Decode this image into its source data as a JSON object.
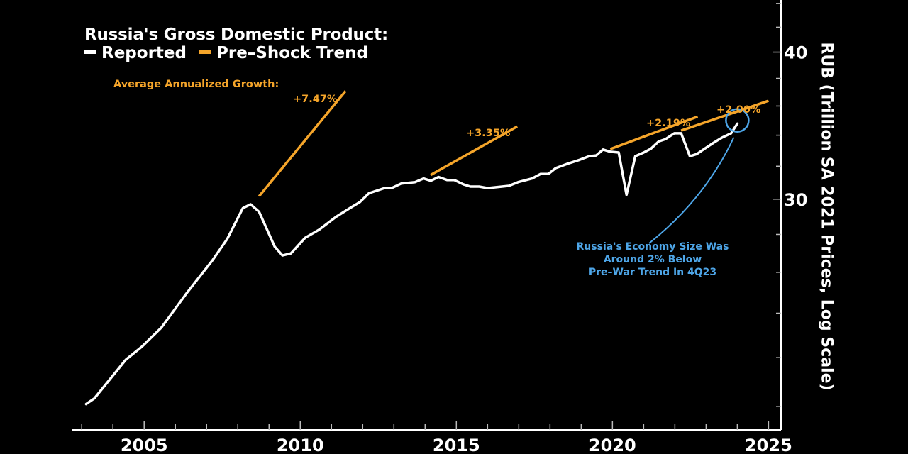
{
  "colors": {
    "background": "#000000",
    "reported": "#FFFFFF",
    "trend": "#F5A52A",
    "callout": "#4EA6E8",
    "axis": "#FFFFFF"
  },
  "chart_data": {
    "type": "line",
    "title": "Russia's Gross Domestic Product:",
    "legend": [
      {
        "name": "Reported",
        "color": "#FFFFFF"
      },
      {
        "name": "Pre–Shock Trend",
        "color": "#F5A52A"
      }
    ],
    "legend_placement": "top-left",
    "xlabel": "",
    "ylabel": "RUB (Trillion SA 2021 Prices, Log Scale)",
    "y_scale": "log",
    "y_axis_side": "right",
    "xlim": [
      2002.7,
      2025.4
    ],
    "ylim": [
      19.1,
      44.3
    ],
    "x_ticks": [
      2003,
      2004,
      2005,
      2006,
      2007,
      2008,
      2009,
      2010,
      2011,
      2012,
      2013,
      2014,
      2015,
      2016,
      2017,
      2018,
      2019,
      2020,
      2021,
      2022,
      2023,
      2024,
      2025
    ],
    "x_tick_labels": [
      "2005",
      "2010",
      "2015",
      "2020",
      "2025"
    ],
    "x_tick_label_values": [
      2005,
      2010,
      2015,
      2020,
      2025
    ],
    "y_ticks": [
      20,
      22,
      24,
      26,
      28,
      30,
      32,
      34,
      36,
      38,
      40,
      42,
      44
    ],
    "y_tick_labels": [
      "30",
      "40"
    ],
    "y_tick_label_values": [
      30,
      40
    ],
    "grid": false,
    "series": [
      {
        "name": "Reported",
        "x": [
          2003.14,
          2003.41,
          2004.41,
          2004.93,
          2005.55,
          2006.36,
          2007.2,
          2007.66,
          2008.16,
          2008.41,
          2008.68,
          2009.18,
          2009.43,
          2009.7,
          2010.16,
          2010.61,
          2011.14,
          2011.59,
          2011.91,
          2012.2,
          2012.7,
          2012.93,
          2013.23,
          2013.68,
          2013.95,
          2014.18,
          2014.43,
          2014.7,
          2014.93,
          2015.23,
          2015.45,
          2015.73,
          2016.0,
          2016.68,
          2016.98,
          2017.43,
          2017.7,
          2017.95,
          2018.18,
          2018.57,
          2018.95,
          2019.25,
          2019.48,
          2019.7,
          2019.93,
          2020.2,
          2020.45,
          2020.73,
          2021.0,
          2021.23,
          2021.48,
          2021.7,
          2021.98,
          2022.2,
          2022.48,
          2022.7,
          2022.95,
          2023.23,
          2023.5,
          2023.8,
          2024.0
        ],
        "values": [
          20.09,
          20.32,
          21.91,
          22.48,
          23.33,
          24.96,
          26.64,
          27.75,
          29.48,
          29.7,
          29.27,
          27.34,
          26.87,
          26.98,
          27.82,
          28.27,
          28.97,
          29.48,
          29.83,
          30.35,
          30.66,
          30.66,
          30.93,
          31.02,
          31.24,
          31.1,
          31.33,
          31.15,
          31.15,
          30.88,
          30.75,
          30.75,
          30.66,
          30.79,
          31.02,
          31.24,
          31.52,
          31.52,
          31.88,
          32.16,
          32.4,
          32.63,
          32.68,
          33.06,
          32.92,
          32.87,
          30.26,
          32.63,
          32.87,
          33.11,
          33.59,
          33.74,
          34.13,
          34.13,
          32.63,
          32.77,
          33.11,
          33.49,
          33.83,
          34.13,
          34.78
        ]
      }
    ],
    "trend_lines": [
      {
        "label": "+7.47%",
        "x": [
          2008.68,
          2011.45
        ],
        "values": [
          30.17,
          37.07
        ]
      },
      {
        "label": "+3.35%",
        "x": [
          2014.18,
          2016.95
        ],
        "values": [
          31.46,
          34.59
        ]
      },
      {
        "label": "+2.19%",
        "x": [
          2019.93,
          2022.73
        ],
        "values": [
          33.09,
          35.26
        ]
      },
      {
        "label": "+2.00%",
        "x": [
          2022.2,
          2025.0
        ],
        "values": [
          34.31,
          36.37
        ]
      }
    ],
    "annotations": {
      "growth_heading": "Average Annualized Growth:",
      "callout_lines": [
        "Russia's Economy Size Was",
        "Around 2% Below",
        "Pre–War Trend In 4Q23"
      ],
      "callout_target": {
        "x": 2024.0,
        "value": 35.0
      }
    }
  }
}
